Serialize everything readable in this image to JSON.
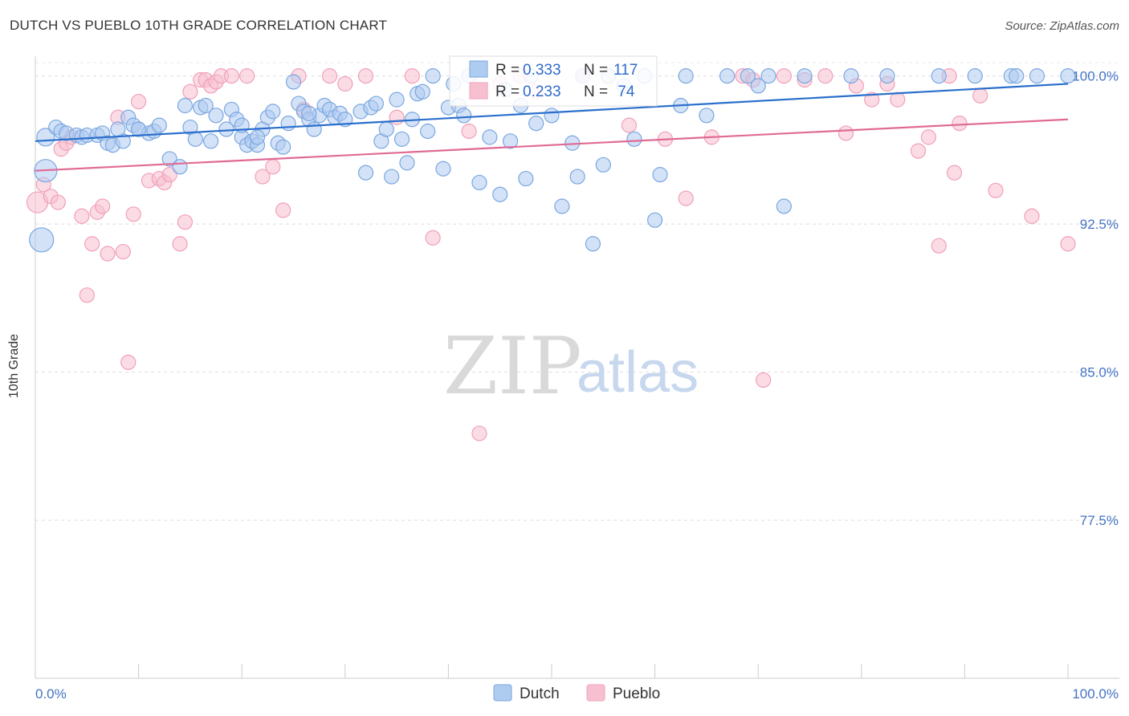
{
  "title": "DUTCH VS PUEBLO 10TH GRADE CORRELATION CHART",
  "source": "Source: ZipAtlas.com",
  "watermark": {
    "zip": "ZIP",
    "atlas": "atlas"
  },
  "chart_data": {
    "type": "scatter",
    "xlabel": "",
    "ylabel": "10th Grade",
    "xlim": [
      0,
      100
    ],
    "ylim": [
      69.5,
      101
    ],
    "x_tick_labels": [
      "0.0%",
      "100.0%"
    ],
    "y_ticks": [
      77.5,
      85.0,
      92.5,
      100.0
    ],
    "y_tick_labels": [
      "77.5%",
      "85.0%",
      "92.5%",
      "100.0%"
    ],
    "grid": true,
    "legend_position": "top-center",
    "colors": {
      "Dutch": "#7aa7e0",
      "Pueblo": "#f0a0b8",
      "Dutch_line": "#2a6fcc",
      "Pueblo_line": "#e06a95"
    },
    "stats": [
      {
        "r_label": "R = ",
        "r": "0.333",
        "n_label": "N = ",
        "n": "117"
      },
      {
        "r_label": "R = ",
        "r": "0.233",
        "n_label": "N = ",
        "n": " 74"
      }
    ],
    "series": [
      {
        "name": "Dutch",
        "trend": {
          "x": [
            0,
            100
          ],
          "y": [
            96.7,
            99.6
          ]
        },
        "points": [
          [
            1.0,
            96.9
          ],
          [
            1.0,
            95.2
          ],
          [
            0.6,
            91.7
          ],
          [
            2.0,
            97.4
          ],
          [
            2.5,
            97.2
          ],
          [
            3.0,
            97.1
          ],
          [
            4.0,
            97.0
          ],
          [
            4.5,
            96.9
          ],
          [
            5.0,
            97.0
          ],
          [
            6.0,
            97.0
          ],
          [
            6.5,
            97.1
          ],
          [
            7.0,
            96.6
          ],
          [
            7.5,
            96.5
          ],
          [
            8.5,
            96.7
          ],
          [
            8.0,
            97.3
          ],
          [
            9.0,
            97.9
          ],
          [
            9.5,
            97.5
          ],
          [
            10.0,
            97.3
          ],
          [
            11.0,
            97.1
          ],
          [
            11.5,
            97.2
          ],
          [
            12.0,
            97.5
          ],
          [
            13.0,
            95.8
          ],
          [
            14.0,
            95.4
          ],
          [
            14.5,
            98.5
          ],
          [
            15.0,
            97.4
          ],
          [
            15.5,
            96.8
          ],
          [
            16.0,
            98.4
          ],
          [
            16.5,
            98.5
          ],
          [
            17.0,
            96.7
          ],
          [
            17.5,
            98.0
          ],
          [
            18.5,
            97.3
          ],
          [
            19.0,
            98.3
          ],
          [
            19.5,
            97.8
          ],
          [
            20.0,
            96.9
          ],
          [
            20.5,
            96.5
          ],
          [
            21.0,
            96.7
          ],
          [
            21.5,
            96.5
          ],
          [
            22.0,
            97.3
          ],
          [
            22.5,
            97.9
          ],
          [
            23.0,
            98.2
          ],
          [
            23.5,
            96.6
          ],
          [
            24.0,
            96.4
          ],
          [
            24.5,
            97.6
          ],
          [
            25.0,
            99.7
          ],
          [
            25.5,
            98.6
          ],
          [
            26.0,
            98.2
          ],
          [
            26.5,
            97.8
          ],
          [
            27.0,
            97.3
          ],
          [
            27.5,
            98.0
          ],
          [
            28.0,
            98.5
          ],
          [
            28.5,
            98.3
          ],
          [
            29.0,
            97.9
          ],
          [
            29.5,
            98.1
          ],
          [
            30.0,
            97.8
          ],
          [
            31.5,
            98.2
          ],
          [
            32.0,
            95.1
          ],
          [
            32.5,
            98.4
          ],
          [
            33.0,
            98.6
          ],
          [
            33.5,
            96.7
          ],
          [
            34.0,
            97.3
          ],
          [
            35.0,
            98.8
          ],
          [
            35.5,
            96.8
          ],
          [
            36.0,
            95.6
          ],
          [
            36.5,
            97.8
          ],
          [
            37.0,
            99.1
          ],
          [
            37.5,
            99.2
          ],
          [
            38.0,
            97.2
          ],
          [
            38.5,
            100.0
          ],
          [
            39.5,
            95.3
          ],
          [
            40.0,
            98.4
          ],
          [
            40.5,
            99.6
          ],
          [
            41.0,
            98.5
          ],
          [
            41.5,
            98.0
          ],
          [
            42.0,
            100.0
          ],
          [
            43.0,
            94.6
          ],
          [
            44.0,
            96.9
          ],
          [
            45.0,
            94.0
          ],
          [
            46.0,
            96.7
          ],
          [
            47.0,
            98.5
          ],
          [
            47.5,
            94.8
          ],
          [
            48.0,
            100.0
          ],
          [
            50.0,
            98.0
          ],
          [
            51.0,
            93.4
          ],
          [
            52.0,
            96.6
          ],
          [
            52.5,
            94.9
          ],
          [
            54.0,
            91.5
          ],
          [
            55.0,
            95.5
          ],
          [
            55.5,
            100.0
          ],
          [
            57.0,
            99.5
          ],
          [
            58.0,
            96.8
          ],
          [
            59.0,
            100.0
          ],
          [
            60.0,
            92.7
          ],
          [
            60.5,
            95.0
          ],
          [
            62.5,
            98.5
          ],
          [
            63.0,
            100.0
          ],
          [
            67.0,
            100.0
          ],
          [
            69.0,
            100.0
          ],
          [
            70.0,
            99.5
          ],
          [
            71.0,
            100.0
          ],
          [
            72.5,
            93.4
          ],
          [
            74.5,
            100.0
          ],
          [
            79.0,
            100.0
          ],
          [
            82.5,
            100.0
          ],
          [
            87.5,
            100.0
          ],
          [
            91.0,
            100.0
          ],
          [
            94.5,
            100.0
          ],
          [
            95.0,
            100.0
          ],
          [
            97.0,
            100.0
          ],
          [
            100.0,
            100.0
          ],
          [
            20.0,
            97.5
          ],
          [
            10.0,
            97.3
          ],
          [
            45.5,
            99.3
          ],
          [
            34.5,
            94.9
          ],
          [
            65.0,
            98.0
          ],
          [
            21.5,
            96.9
          ],
          [
            48.5,
            97.6
          ],
          [
            53.0,
            100.0
          ],
          [
            26.5,
            98.1
          ]
        ],
        "sizes": {
          "0": 22,
          "1": 28,
          "2": 30
        }
      },
      {
        "name": "Pueblo",
        "trend": {
          "x": [
            0,
            100
          ],
          "y": [
            95.2,
            97.8
          ]
        },
        "points": [
          [
            0.2,
            93.6
          ],
          [
            0.8,
            94.5
          ],
          [
            1.5,
            93.9
          ],
          [
            2.2,
            93.6
          ],
          [
            2.5,
            96.3
          ],
          [
            3.0,
            96.6
          ],
          [
            3.5,
            96.9
          ],
          [
            4.5,
            92.9
          ],
          [
            5.0,
            88.9
          ],
          [
            5.5,
            91.5
          ],
          [
            6.0,
            93.1
          ],
          [
            6.5,
            93.4
          ],
          [
            7.0,
            91.0
          ],
          [
            8.0,
            97.9
          ],
          [
            8.5,
            91.1
          ],
          [
            9.0,
            85.5
          ],
          [
            9.5,
            93.0
          ],
          [
            10.0,
            98.7
          ],
          [
            11.0,
            94.7
          ],
          [
            12.0,
            94.8
          ],
          [
            12.5,
            94.6
          ],
          [
            13.0,
            95.0
          ],
          [
            14.0,
            91.5
          ],
          [
            14.5,
            92.6
          ],
          [
            15.0,
            99.2
          ],
          [
            16.0,
            99.8
          ],
          [
            16.5,
            99.8
          ],
          [
            17.0,
            99.5
          ],
          [
            17.5,
            99.7
          ],
          [
            18.0,
            100.0
          ],
          [
            19.0,
            100.0
          ],
          [
            20.5,
            100.0
          ],
          [
            22.0,
            94.9
          ],
          [
            23.0,
            95.4
          ],
          [
            24.0,
            93.2
          ],
          [
            25.5,
            100.0
          ],
          [
            26.0,
            98.3
          ],
          [
            28.5,
            100.0
          ],
          [
            30.0,
            99.6
          ],
          [
            32.0,
            100.0
          ],
          [
            35.0,
            97.9
          ],
          [
            36.5,
            100.0
          ],
          [
            38.5,
            91.8
          ],
          [
            42.0,
            97.2
          ],
          [
            43.0,
            81.9
          ],
          [
            45.0,
            99.6
          ],
          [
            47.0,
            100.0
          ],
          [
            48.5,
            99.2
          ],
          [
            53.0,
            100.0
          ],
          [
            57.5,
            97.5
          ],
          [
            61.0,
            96.8
          ],
          [
            63.0,
            93.8
          ],
          [
            65.5,
            96.9
          ],
          [
            68.5,
            100.0
          ],
          [
            69.5,
            99.8
          ],
          [
            70.5,
            84.6
          ],
          [
            72.5,
            100.0
          ],
          [
            74.5,
            99.8
          ],
          [
            76.5,
            100.0
          ],
          [
            78.5,
            97.1
          ],
          [
            79.5,
            99.5
          ],
          [
            81.0,
            98.8
          ],
          [
            82.5,
            99.6
          ],
          [
            83.5,
            98.8
          ],
          [
            85.5,
            96.2
          ],
          [
            86.5,
            96.9
          ],
          [
            87.5,
            91.4
          ],
          [
            88.5,
            100.0
          ],
          [
            89.0,
            95.1
          ],
          [
            89.5,
            97.6
          ],
          [
            91.5,
            99.0
          ],
          [
            93.0,
            94.2
          ],
          [
            96.5,
            92.9
          ],
          [
            100.0,
            91.5
          ]
        ],
        "sizes": {
          "0": 26
        }
      }
    ],
    "bottom_legend": [
      "Dutch",
      "Pueblo"
    ]
  }
}
